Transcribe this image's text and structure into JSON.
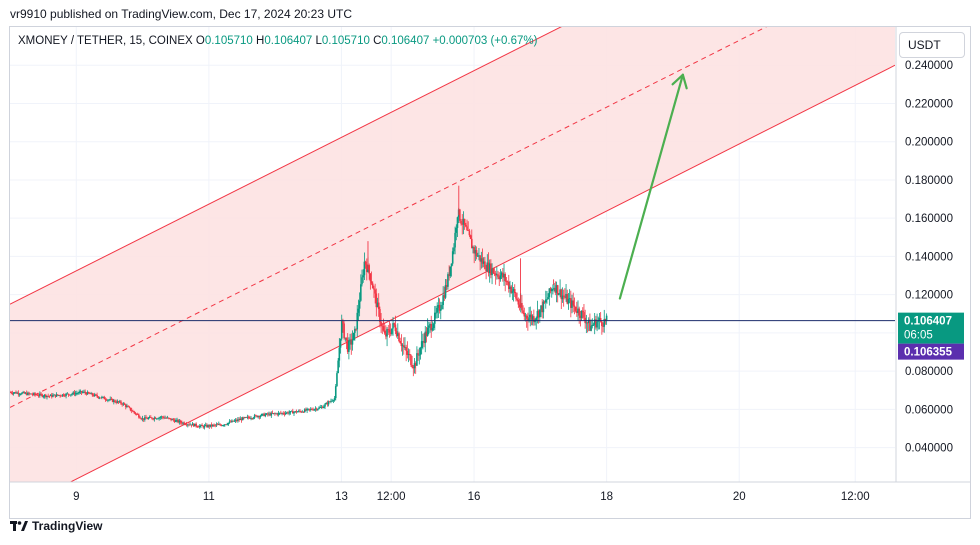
{
  "header": {
    "published": "vr9910 published on TradingView.com, Dec 17, 2024 20:23 UTC"
  },
  "legend": {
    "symbol": "XMONEY / TETHER, 15, COINEX",
    "o_label": "O",
    "o_value": "0.105710",
    "h_label": "H",
    "h_value": "0.106407",
    "l_label": "L",
    "l_value": "0.105710",
    "c_label": "C",
    "c_value": "0.106407",
    "change": "+0.000703 (+0.67%)"
  },
  "currency_button": "USDT",
  "footer": {
    "brand": "TradingView"
  },
  "colors": {
    "up": "#089981",
    "down": "#f23645",
    "channel": "#f23645",
    "channel_fill": "#fde2e2",
    "arrow": "#4caf50",
    "price_line": "#1c2d6b",
    "badge_price": "#089981",
    "badge_alt": "#5b2fae"
  },
  "chart_data": {
    "type": "candlestick",
    "yaxis_ticks": [
      "0.240000",
      "0.220000",
      "0.200000",
      "0.180000",
      "0.160000",
      "0.140000",
      "0.120000",
      "0.080000",
      "0.060000",
      "0.040000"
    ],
    "yaxis_values": [
      0.24,
      0.22,
      0.2,
      0.18,
      0.16,
      0.14,
      0.12,
      0.08,
      0.06,
      0.04
    ],
    "ylim": [
      0.022,
      0.26
    ],
    "xaxis_ticks": [
      "9",
      "11",
      "13",
      "12:00",
      "16",
      "18",
      "20",
      "12:00"
    ],
    "xaxis_values": [
      1,
      3,
      5,
      5.75,
      7,
      9,
      11,
      12.75
    ],
    "xlim": [
      0,
      13.35
    ],
    "price_label": "0.106407",
    "countdown": "06:05",
    "alt_price_label": "0.106355",
    "current_price": 0.106407,
    "alt_price": 0.106355,
    "price_path": [
      [
        0,
        0.069
      ],
      [
        0.3,
        0.068
      ],
      [
        0.6,
        0.067
      ],
      [
        0.9,
        0.068
      ],
      [
        1.1,
        0.069
      ],
      [
        1.4,
        0.066
      ],
      [
        1.7,
        0.063
      ],
      [
        2.0,
        0.055
      ],
      [
        2.3,
        0.056
      ],
      [
        2.6,
        0.053
      ],
      [
        2.9,
        0.051
      ],
      [
        3.2,
        0.052
      ],
      [
        3.5,
        0.055
      ],
      [
        3.8,
        0.057
      ],
      [
        4.1,
        0.058
      ],
      [
        4.4,
        0.059
      ],
      [
        4.7,
        0.061
      ],
      [
        4.9,
        0.066
      ],
      [
        5.0,
        0.105
      ],
      [
        5.1,
        0.092
      ],
      [
        5.2,
        0.099
      ],
      [
        5.35,
        0.138
      ],
      [
        5.45,
        0.128
      ],
      [
        5.55,
        0.112
      ],
      [
        5.65,
        0.098
      ],
      [
        5.8,
        0.104
      ],
      [
        5.95,
        0.091
      ],
      [
        6.1,
        0.083
      ],
      [
        6.25,
        0.098
      ],
      [
        6.4,
        0.107
      ],
      [
        6.5,
        0.115
      ],
      [
        6.6,
        0.127
      ],
      [
        6.7,
        0.147
      ],
      [
        6.75,
        0.163
      ],
      [
        6.85,
        0.156
      ],
      [
        7.0,
        0.143
      ],
      [
        7.15,
        0.136
      ],
      [
        7.3,
        0.132
      ],
      [
        7.45,
        0.129
      ],
      [
        7.6,
        0.121
      ],
      [
        7.75,
        0.109
      ],
      [
        7.9,
        0.108
      ],
      [
        8.05,
        0.114
      ],
      [
        8.2,
        0.125
      ],
      [
        8.35,
        0.119
      ],
      [
        8.5,
        0.114
      ],
      [
        8.65,
        0.109
      ],
      [
        8.75,
        0.103
      ],
      [
        8.85,
        0.106
      ],
      [
        9.0,
        0.106
      ]
    ],
    "channel": {
      "upper": [
        [
          0,
          0.115
        ],
        [
          13.35,
          0.348
        ]
      ],
      "mid": [
        [
          0,
          0.061
        ],
        [
          13.35,
          0.294
        ]
      ],
      "lower": [
        [
          0,
          0.006
        ],
        [
          13.35,
          0.24
        ]
      ]
    },
    "arrow": {
      "from": [
        9.2,
        0.118
      ],
      "to": [
        10.15,
        0.235
      ]
    }
  }
}
